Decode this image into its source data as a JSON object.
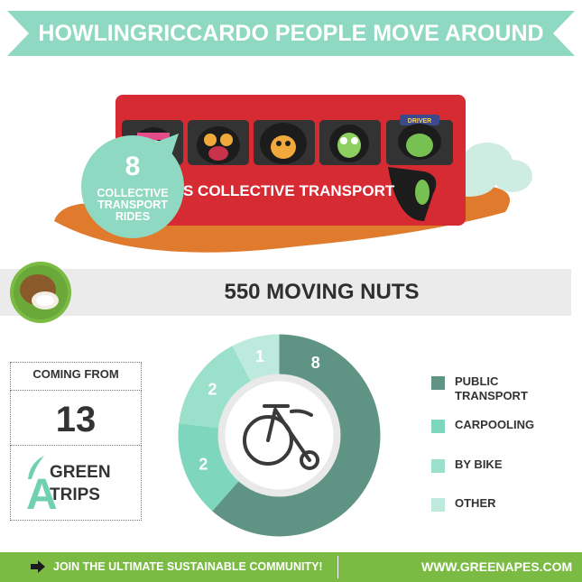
{
  "banner": {
    "title": "HOWLINGRICCARDO PEOPLE MOVE AROUND"
  },
  "bus": {
    "label": "S COLLECTIVE TRANSPORT",
    "driver_badge": "DRIVER",
    "rides_count": "8",
    "rides_label": "COLLECTIVE TRANSPORT RIDES"
  },
  "stats": {
    "moving_nuts": "550 MOVING NUTS"
  },
  "origin": {
    "label": "COMING FROM",
    "count": "13"
  },
  "grade": {
    "letter": "A",
    "label": "GREEN TRIPS"
  },
  "chart_data": {
    "type": "pie",
    "categories": [
      "PUBLIC TRANSPORT",
      "CARPOOLING",
      "BY BIKE",
      "OTHER"
    ],
    "values": [
      8,
      2,
      2,
      1
    ],
    "colors": [
      "#5f9484",
      "#7ed6bd",
      "#9ae0cb",
      "#bdeadd"
    ],
    "donut": true,
    "center_icon": "penny-farthing-bicycle-icon",
    "legend_position": "right"
  },
  "legend": {
    "items": [
      {
        "label": "PUBLIC TRANSPORT",
        "color": "#5f9484"
      },
      {
        "label": "CARPOOLING",
        "color": "#7ed6bd"
      },
      {
        "label": "BY BIKE",
        "color": "#9ae0cb"
      },
      {
        "label": "OTHER",
        "color": "#bdeadd"
      }
    ]
  },
  "footer": {
    "cta": "JOIN THE ULTIMATE SUSTAINABLE COMMUNITY!",
    "url": "WWW.GREENAPES.COM"
  },
  "colors": {
    "accent_mint": "#8fd9c2",
    "bus_red": "#d72b33",
    "ground_orange": "#e07a2c",
    "footer_green": "#7bbb44"
  }
}
